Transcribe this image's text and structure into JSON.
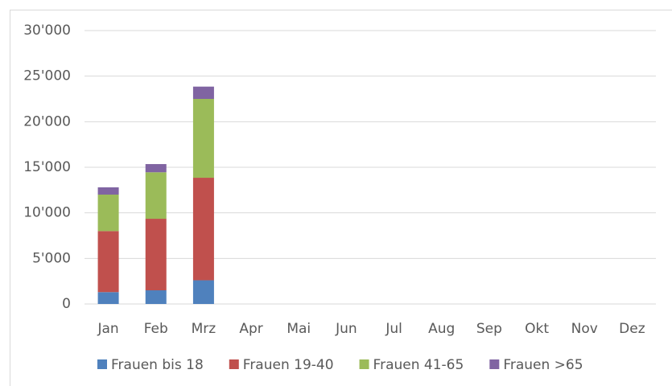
{
  "chart_data": {
    "type": "stacked_bar",
    "categories": [
      "Jan",
      "Feb",
      "Mrz",
      "Apr",
      "Mai",
      "Jun",
      "Jul",
      "Aug",
      "Sep",
      "Okt",
      "Nov",
      "Dez"
    ],
    "series": [
      {
        "name": "Frauen bis 18",
        "color": "#4f81bd",
        "values": [
          1300,
          1500,
          2600,
          null,
          null,
          null,
          null,
          null,
          null,
          null,
          null,
          null
        ]
      },
      {
        "name": "Frauen 19-40",
        "color": "#c0504d",
        "values": [
          6700,
          7850,
          11250,
          null,
          null,
          null,
          null,
          null,
          null,
          null,
          null,
          null
        ]
      },
      {
        "name": "Frauen 41-65",
        "color": "#9bbb59",
        "values": [
          4000,
          5100,
          8650,
          null,
          null,
          null,
          null,
          null,
          null,
          null,
          null,
          null
        ]
      },
      {
        "name": "Frauen >65",
        "color": "#8064a2",
        "values": [
          800,
          900,
          1350,
          null,
          null,
          null,
          null,
          null,
          null,
          null,
          null,
          null
        ]
      }
    ],
    "ylim": [
      0,
      30000
    ],
    "yticks": [
      0,
      {
        "value": 5000,
        "label": "5'000"
      },
      {
        "value": 10000,
        "label": "10'000"
      },
      {
        "value": 15000,
        "label": "15'000"
      },
      {
        "value": 20000,
        "label": "20'000"
      },
      {
        "value": 25000,
        "label": "25'000"
      },
      {
        "value": 30000,
        "label": "30'000"
      }
    ],
    "grid": true,
    "legend": "bottom"
  }
}
